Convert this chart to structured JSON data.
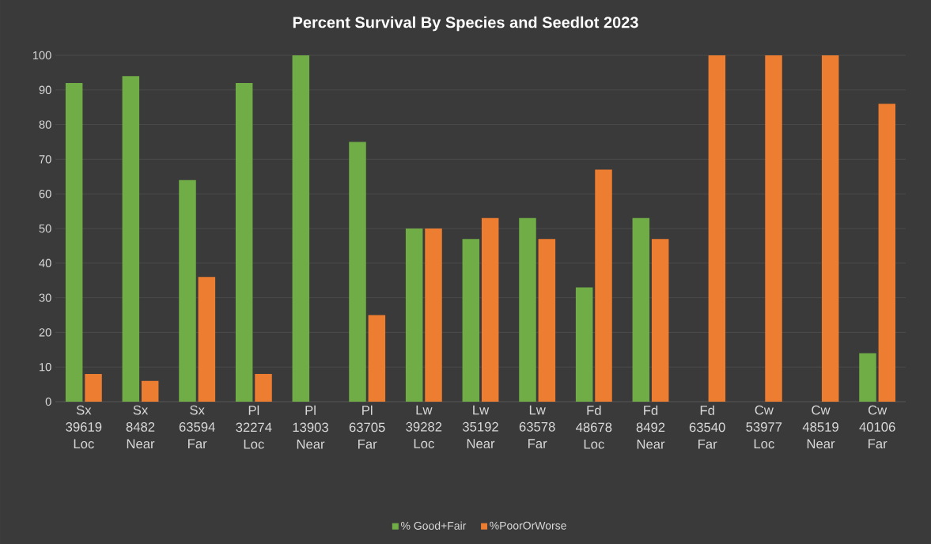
{
  "chart_data": {
    "type": "bar",
    "title": "Percent Survival By Species and Seedlot 2023",
    "categories": [
      "Sx 39619 Loc",
      "Sx 8482 Near",
      "Sx 63594 Far",
      "Pl 32274 Loc",
      "Pl 13903 Near",
      "Pl 63705 Far",
      "Lw 39282 Loc",
      "Lw 35192 Near",
      "Lw 63578 Far",
      "Fd 48678 Loc",
      "Fd 8492 Near",
      "Fd 63540 Far",
      "Cw 53977 Loc",
      "Cw 48519 Near",
      "Cw 40106 Far"
    ],
    "series": [
      {
        "name": "% Good+Fair",
        "color": "#70ad47",
        "values": [
          92,
          94,
          64,
          92,
          100,
          75,
          50,
          47,
          53,
          33,
          53,
          0,
          0,
          0,
          14
        ]
      },
      {
        "name": "%PoorOrWorse",
        "color": "#ed7d31",
        "values": [
          8,
          6,
          36,
          8,
          0,
          25,
          50,
          53,
          47,
          67,
          47,
          100,
          100,
          100,
          86
        ]
      }
    ],
    "ylim": [
      0,
      100
    ],
    "yticks": [
      0,
      10,
      20,
      30,
      40,
      50,
      60,
      70,
      80,
      90,
      100
    ],
    "grid": "y",
    "legend": "bottom"
  }
}
